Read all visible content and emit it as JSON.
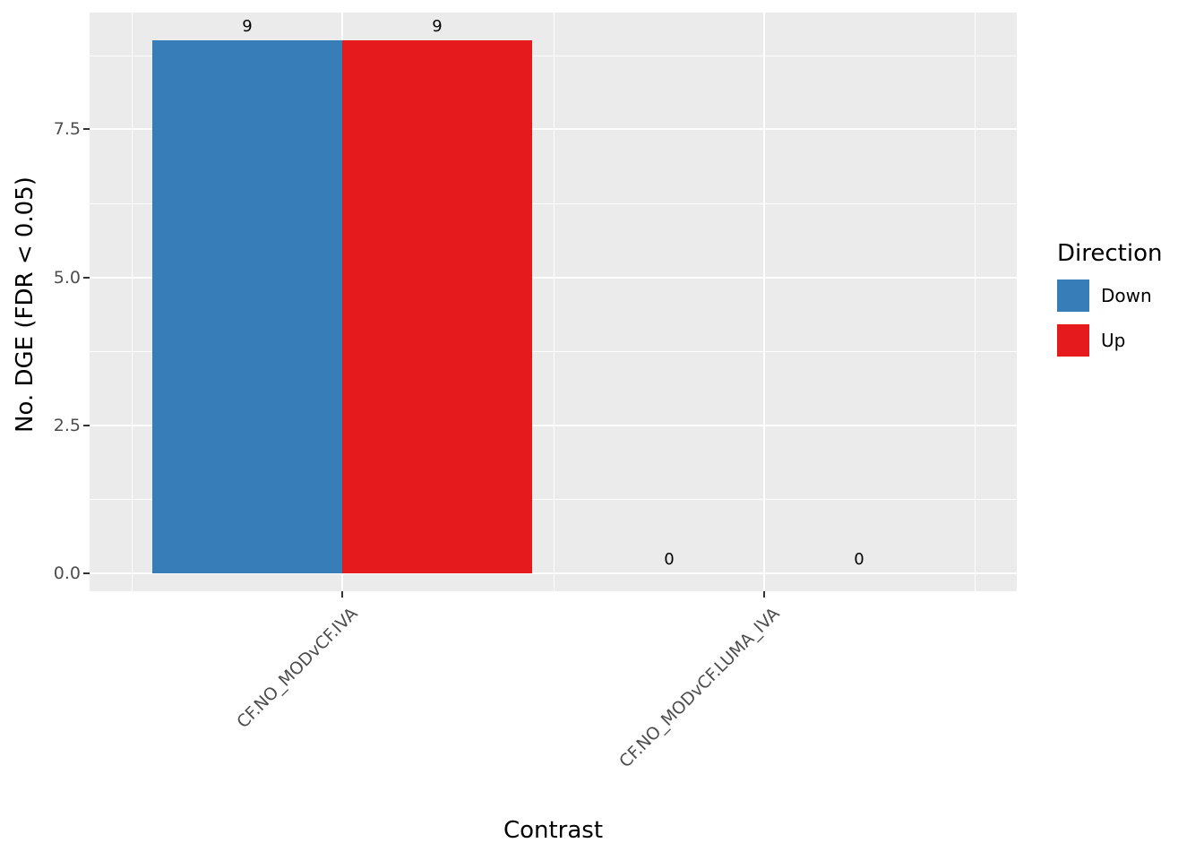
{
  "chart_data": {
    "type": "bar",
    "title": "",
    "xlabel": "Contrast",
    "ylabel": "No. DGE (FDR < 0.05)",
    "categories": [
      "CF.NO_MODvCF.IVA",
      "CF.NO_MODvCF.LUMA_IVA"
    ],
    "series": [
      {
        "name": "Down",
        "color": "#377EB8",
        "values": [
          9,
          0
        ]
      },
      {
        "name": "Up",
        "color": "#E41A1C",
        "values": [
          9,
          0
        ]
      }
    ],
    "bar_value_labels": [
      [
        "9",
        "0"
      ],
      [
        "9",
        "0"
      ]
    ],
    "y_ticks": [
      "0.0",
      "2.5",
      "5.0",
      "7.5"
    ],
    "y_tick_values": [
      0,
      2.5,
      5.0,
      7.5
    ],
    "ylim": [
      0,
      9.5
    ],
    "legend_title": "Direction",
    "legend_position": "right",
    "grid": true,
    "panel_bg": "#EBEBEB",
    "grid_color": "#FFFFFF"
  }
}
